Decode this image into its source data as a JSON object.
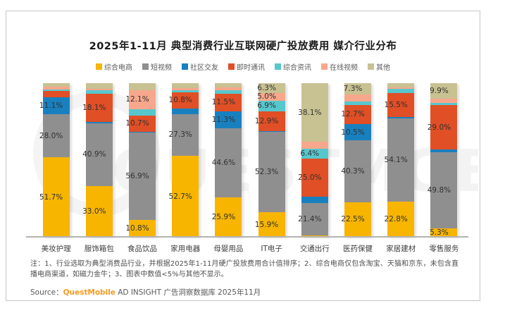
{
  "title": "2025年1-11月 典型消费行业互联网硬广投放费用 媒介行业分布",
  "legend": {
    "items": [
      {
        "label": "综合电商",
        "color": "#F7B500"
      },
      {
        "label": "短视频",
        "color": "#8F8F8F"
      },
      {
        "label": "社区交友",
        "color": "#1980C0"
      },
      {
        "label": "即时通讯",
        "color": "#E04F26"
      },
      {
        "label": "综合资讯",
        "color": "#57C7CE"
      },
      {
        "label": "在线视频",
        "color": "#F7A78C"
      },
      {
        "label": "其他",
        "color": "#C8C192"
      }
    ]
  },
  "chart_data": {
    "type": "bar",
    "stacked": true,
    "unit": "%",
    "ylim": [
      0,
      100
    ],
    "label_visibility_threshold_pct": 5,
    "categories": [
      "美妆护理",
      "服饰箱包",
      "食品饮品",
      "家用电器",
      "母婴用品",
      "IT电子",
      "交通出行",
      "医药保健",
      "家居建材",
      "零售服务"
    ],
    "series": [
      {
        "name": "综合电商",
        "color": "#F7B500",
        "values": [
          51.7,
          33.0,
          10.8,
          52.7,
          25.9,
          15.9,
          0.7,
          22.5,
          22.8,
          5.3
        ]
      },
      {
        "name": "短视频",
        "color": "#8F8F8F",
        "values": [
          28.0,
          40.9,
          56.9,
          27.3,
          44.6,
          52.3,
          21.4,
          40.3,
          54.1,
          49.8
        ]
      },
      {
        "name": "社区交友",
        "color": "#1980C0",
        "values": [
          11.1,
          1.0,
          0.6,
          3.4,
          11.3,
          0.7,
          4.0,
          10.5,
          1.0,
          1.7
        ]
      },
      {
        "name": "即时通讯",
        "color": "#E04F26",
        "values": [
          4.3,
          18.1,
          10.7,
          10.8,
          11.5,
          12.9,
          25.0,
          12.7,
          15.5,
          29.0
        ]
      },
      {
        "name": "综合资讯",
        "color": "#57C7CE",
        "values": [
          0.9,
          2.5,
          4.2,
          1.3,
          2.0,
          6.9,
          6.4,
          2.2,
          3.0,
          1.3
        ]
      },
      {
        "name": "在线视频",
        "color": "#F7A78C",
        "values": [
          1.6,
          1.0,
          12.1,
          1.2,
          2.2,
          5.0,
          4.4,
          4.5,
          1.0,
          3.0
        ]
      },
      {
        "name": "其他",
        "color": "#C8C192",
        "values": [
          2.4,
          3.5,
          4.7,
          3.3,
          2.5,
          6.3,
          38.1,
          7.3,
          2.6,
          9.9
        ]
      }
    ],
    "shown_value_labels_note": "图表中数值<5%与其他不显示"
  },
  "notes": "注：1、行业选取为典型消费品行业，并根据2025年1-11月硬广投放费用合计值排序；2、综合电商仅包含淘宝、天猫和京东，未包含直播电商渠道，如磁力金牛；3、图表中数值<5%与其他不显示。",
  "source": {
    "prefix": "Source：",
    "brand": "QuestMobile",
    "brand_color": "#F59A23",
    "rest": " AD INSIGHT 广告洞察数据库 2025年11月"
  },
  "watermark": "QUESTMOBILE"
}
